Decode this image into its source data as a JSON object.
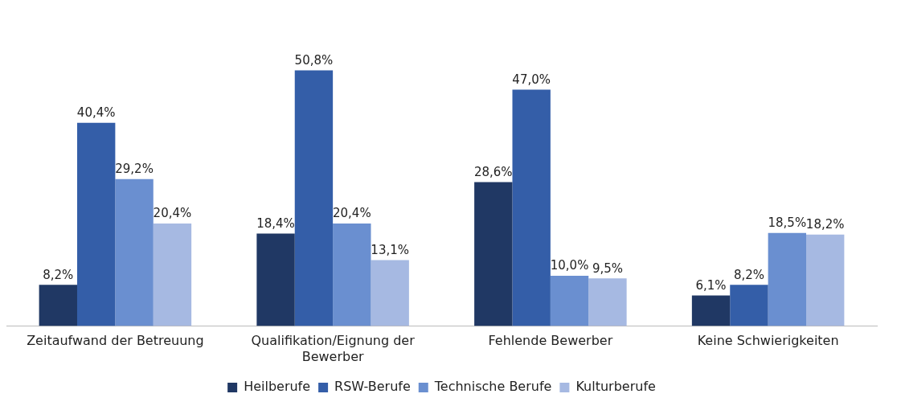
{
  "chart_data": {
    "type": "bar",
    "categories": [
      "Zeitaufwand der Betreuung",
      "Qualifikation/Eignung der Bewerber",
      "Fehlende Bewerber",
      "Keine Schwierigkeiten"
    ],
    "series": [
      {
        "name": "Heilberufe",
        "color": "#203864",
        "values": [
          8.2,
          18.4,
          28.6,
          6.1
        ],
        "value_labels": [
          "8,2%",
          "18,4%",
          "28,6%",
          "6,1%"
        ]
      },
      {
        "name": "RSW-Berufe",
        "color": "#345ea8",
        "values": [
          40.4,
          50.8,
          47.0,
          8.2
        ],
        "value_labels": [
          "40,4%",
          "50,8%",
          "47,0%",
          "8,2%"
        ]
      },
      {
        "name": "Technische Berufe",
        "color": "#6a8fd0",
        "values": [
          29.2,
          20.4,
          10.0,
          18.5
        ],
        "value_labels": [
          "29,2%",
          "20,4%",
          "10,0%",
          "18,5%"
        ]
      },
      {
        "name": "Kulturberufe",
        "color": "#a6b9e2",
        "values": [
          20.4,
          13.1,
          9.5,
          18.2
        ],
        "value_labels": [
          "20,4%",
          "13,1%",
          "9,5%",
          "18,2%"
        ]
      }
    ],
    "legend": "bottom",
    "grid": false,
    "tick_labels": "x"
  }
}
